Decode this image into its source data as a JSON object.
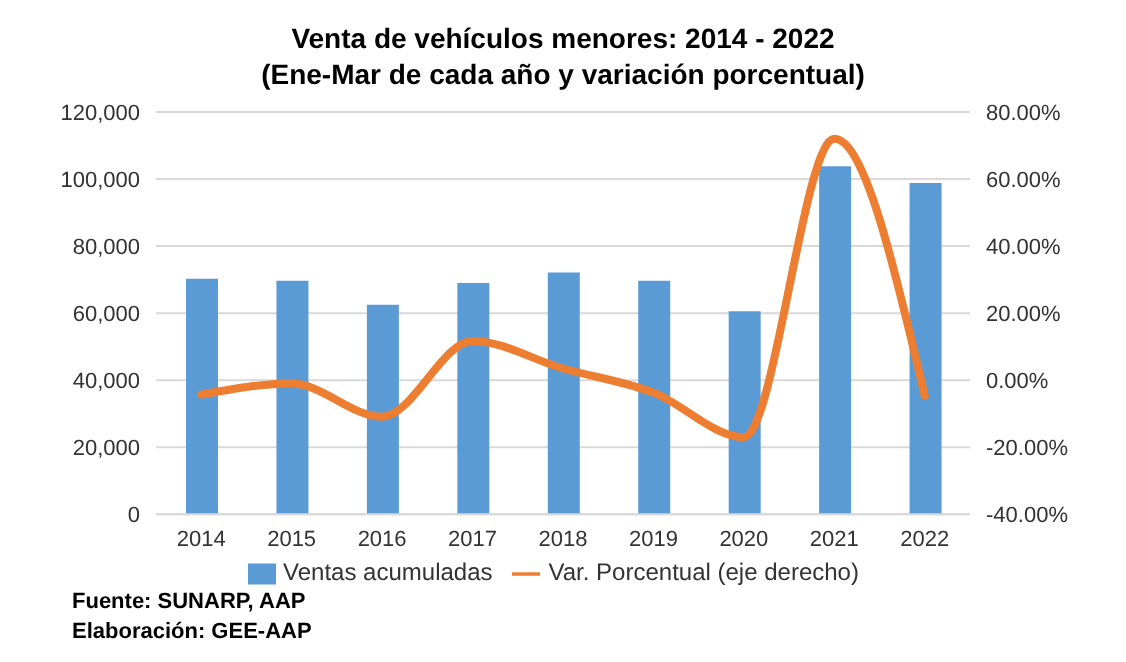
{
  "chart_data": {
    "type": "bar",
    "title": "Venta de vehículos menores: 2014 - 2022",
    "subtitle": "(Ene-Mar de cada año y variación porcentual)",
    "categories": [
      "2014",
      "2015",
      "2016",
      "2017",
      "2018",
      "2019",
      "2020",
      "2021",
      "2022"
    ],
    "series": [
      {
        "name": "Ventas acumuladas",
        "color": "#5b9bd5",
        "values": [
          70300,
          69700,
          62500,
          69000,
          72100,
          69700,
          60600,
          103800,
          98800
        ]
      },
      {
        "name": "Var. Porcentual (eje derecho)",
        "type": "line",
        "axis": "y2",
        "color": "#ed7d31",
        "marker": "none",
        "values": [
          -4.3,
          -1.0,
          -10.9,
          11.7,
          3.5,
          -3.7,
          -17.0,
          72.0,
          -4.7
        ]
      }
    ],
    "ylim": [
      0,
      120000
    ],
    "yticks": [
      0,
      {
        "value": 20000,
        "label": "20,000"
      },
      {
        "value": 40000,
        "label": "40,000"
      },
      {
        "value": 60000,
        "label": "60,000"
      },
      {
        "value": 80000,
        "label": "80,000"
      },
      {
        "value": 100000,
        "label": "100,000"
      },
      {
        "value": 120000,
        "label": "120,000"
      }
    ],
    "y2lim": [
      -40,
      80
    ],
    "y2ticks": [
      {
        "value": -40,
        "label": "-40.00%"
      },
      {
        "value": -20,
        "label": "-20.00%"
      },
      {
        "value": 0,
        "label": "0.00%"
      },
      {
        "value": 20,
        "label": "20.00%"
      },
      {
        "value": 40,
        "label": "40.00%"
      },
      {
        "value": 60,
        "label": "60.00%"
      },
      {
        "value": 80,
        "label": "80.00%"
      }
    ],
    "grid": "y",
    "legend": "bottom",
    "annotations": [
      "Fuente: SUNARP, AAP",
      "Elaboración: GEE-AAP"
    ]
  }
}
